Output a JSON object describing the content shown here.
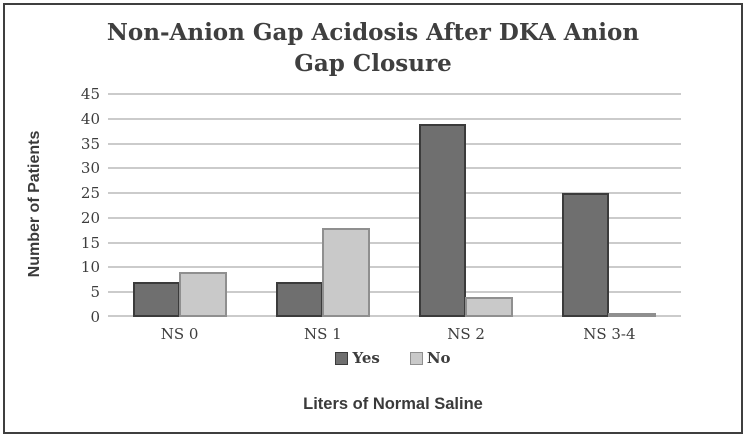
{
  "chart_data": {
    "type": "bar",
    "title": "Non-Anion Gap Acidosis After DKA Anion Gap Closure",
    "xlabel": "Liters of Normal Saline",
    "ylabel": "Number of Patients",
    "categories": [
      "NS 0",
      "NS 1",
      "NS 2",
      "NS 3-4"
    ],
    "series": [
      {
        "name": "Yes",
        "values": [
          7,
          7,
          39,
          25
        ],
        "fill": "#6f6f6f",
        "border": "#3b3b3b"
      },
      {
        "name": "No",
        "values": [
          9,
          18,
          4,
          0
        ],
        "fill": "#c9c9c9",
        "border": "#8f8f8f"
      }
    ],
    "ylim": [
      0,
      45
    ],
    "yticks": [
      0,
      5,
      10,
      15,
      20,
      25,
      30,
      35,
      40,
      45
    ],
    "grid": true,
    "legend_position": "bottom"
  },
  "colors": {
    "gridline": "#cbcbcb",
    "text": "#3d3d3d",
    "frame_border": "#3f3f3f",
    "background": "#ffffff"
  }
}
